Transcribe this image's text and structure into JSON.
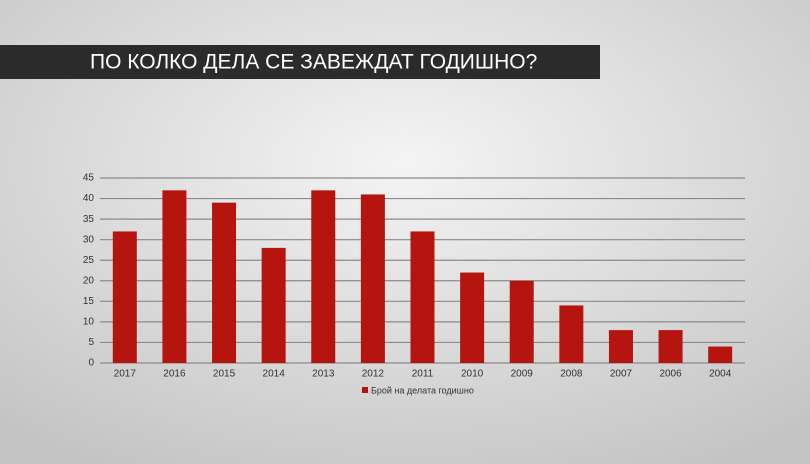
{
  "chart_data": {
    "type": "bar",
    "title": "ПО КОЛКО ДЕЛА СЕ ЗАВЕЖДАТ ГОДИШНО?",
    "categories": [
      "2017",
      "2016",
      "2015",
      "2014",
      "2013",
      "2012",
      "2011",
      "2010",
      "2009",
      "2008",
      "2007",
      "2006",
      "2004"
    ],
    "series": [
      {
        "name": "Брой на делата годишно",
        "color": "#b5140f",
        "values": [
          32,
          42,
          39,
          28,
          42,
          41,
          32,
          22,
          20,
          14,
          8,
          8,
          4
        ]
      }
    ],
    "ylim": [
      0,
      45
    ],
    "yticks": [
      0,
      5,
      10,
      15,
      20,
      25,
      30,
      35,
      40,
      45
    ],
    "grid": true
  }
}
